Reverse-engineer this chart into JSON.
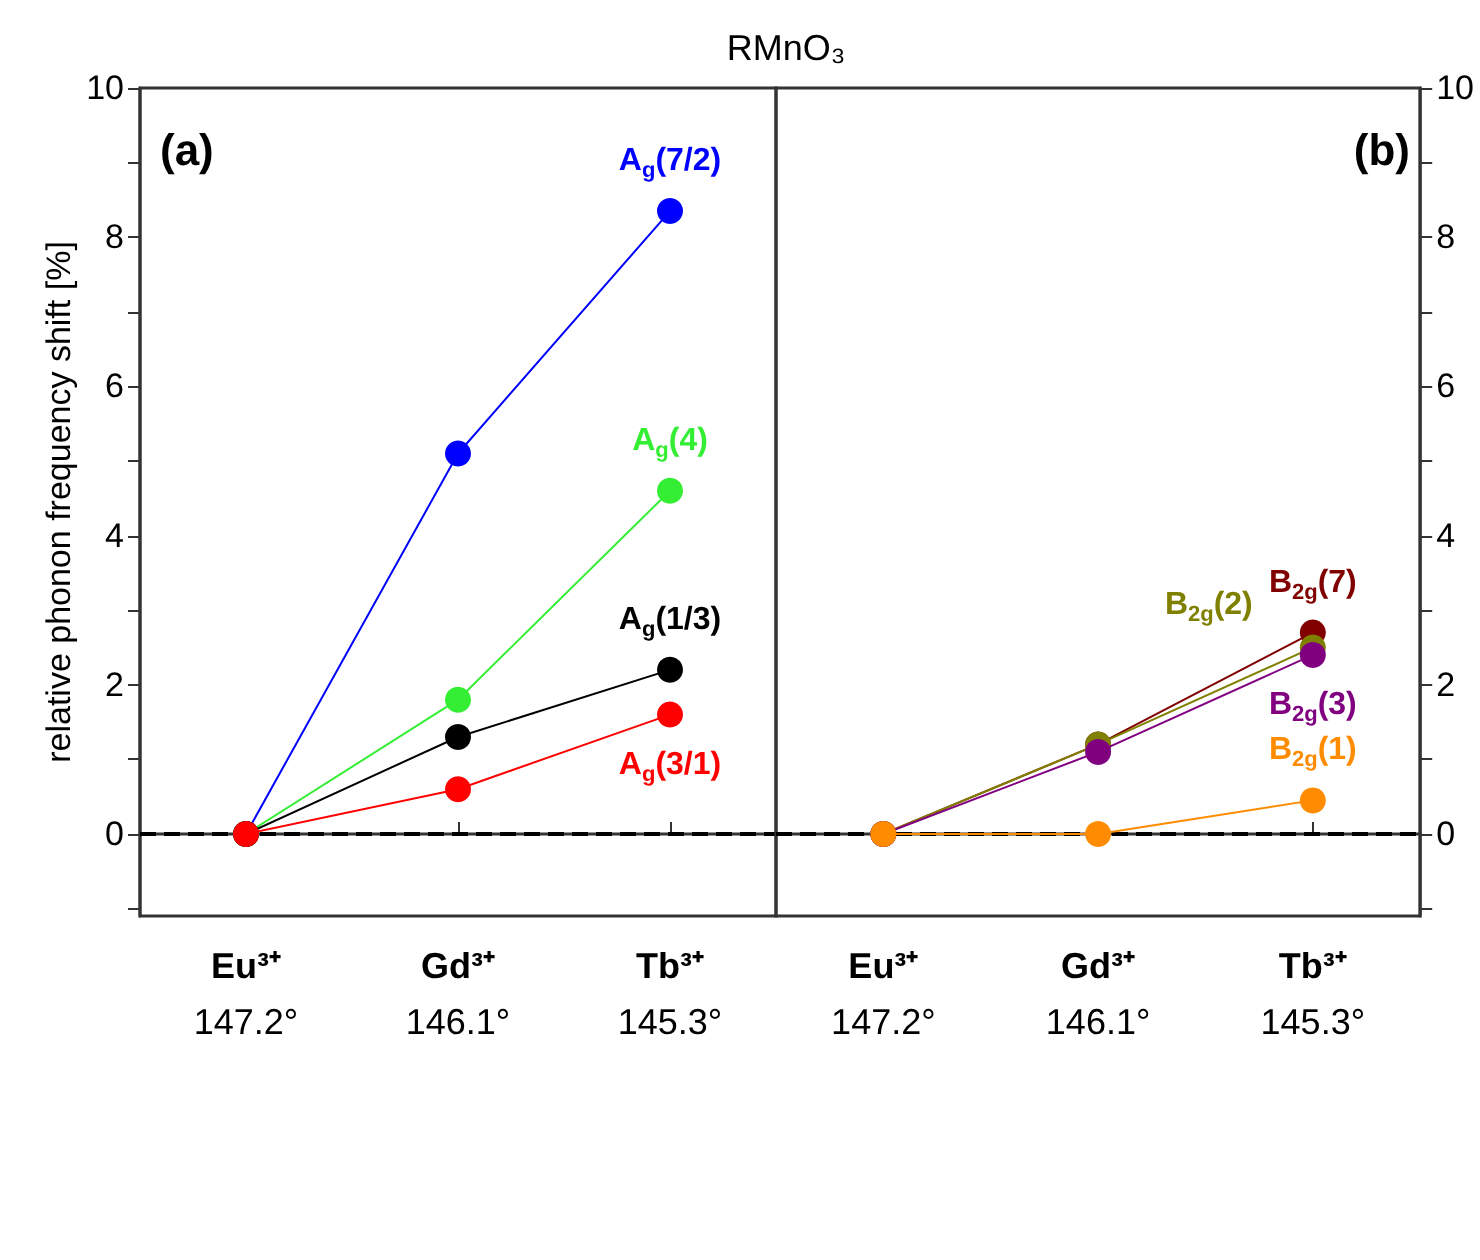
{
  "chart_data": [
    {
      "type": "line",
      "title": "RMnO₃",
      "ylabel": "relative phonon frequency shift [%]",
      "annotations": [
        "(a)"
      ],
      "categories": [
        "Eu³⁺\n147.2°",
        "Gd³⁺\n146.1°",
        "Tb³⁺\n145.3°"
      ],
      "ylim": [
        -1.1,
        10
      ],
      "yticks": [
        {
          "value": -1,
          "label": null
        },
        0,
        {
          "value": 1,
          "label": null
        },
        2,
        {
          "value": 3,
          "label": null
        },
        4,
        {
          "value": 5,
          "label": null
        },
        6,
        {
          "value": 7,
          "label": null
        },
        8,
        {
          "value": 9,
          "label": null
        },
        10
      ],
      "marker": "circle",
      "line_style": "solid",
      "legend": false,
      "grid": false,
      "ref_lines": [
        {
          "axis": "y",
          "value": 0,
          "color": "#000000",
          "line_style": "dashed"
        }
      ],
      "series": [
        {
          "name": "A$_{g}$(7/2)",
          "color": "#0000ff",
          "values": [
            0,
            5.1,
            8.35
          ]
        },
        {
          "name": "A$_{g}$(4)",
          "color": "#33ee33",
          "values": [
            0,
            1.8,
            4.6
          ]
        },
        {
          "name": "A$_{g}$(1/3)",
          "color": "#000000",
          "values": [
            0,
            1.3,
            2.2
          ]
        },
        {
          "name": "A$_{g}$(3/1)",
          "color": "#ff0000",
          "values": [
            0,
            0.6,
            1.6
          ]
        }
      ]
    },
    {
      "type": "line",
      "annotations": [
        "(b)"
      ],
      "categories": [
        "Eu³⁺\n147.2°",
        "Gd³⁺\n146.1°",
        "Tb³⁺\n145.3°"
      ],
      "ylim": [
        -1.1,
        10
      ],
      "yticks": [
        {
          "value": -1,
          "label": null
        },
        0,
        {
          "value": 1,
          "label": null
        },
        2,
        {
          "value": 3,
          "label": null
        },
        4,
        {
          "value": 5,
          "label": null
        },
        6,
        {
          "value": 7,
          "label": null
        },
        8,
        {
          "value": 9,
          "label": null
        },
        10
      ],
      "marker": "circle",
      "line_style": "solid",
      "legend": false,
      "grid": false,
      "ref_lines": [
        {
          "axis": "y",
          "value": 0,
          "color": "#000000",
          "line_style": "dashed"
        }
      ],
      "series": [
        {
          "name": "B$_{2g}$(7)",
          "color": "#800000",
          "values": [
            0,
            1.2,
            2.7
          ]
        },
        {
          "name": "B$_{2g}$(2)",
          "color": "#808000",
          "values": [
            0,
            1.2,
            2.5
          ]
        },
        {
          "name": "B$_{2g}$(3)",
          "color": "#800080",
          "values": [
            0,
            1.1,
            2.4
          ]
        },
        {
          "name": "B$_{2g}$(1)",
          "color": "#ff8c00",
          "values": [
            0,
            0,
            0.45
          ]
        }
      ]
    }
  ]
}
